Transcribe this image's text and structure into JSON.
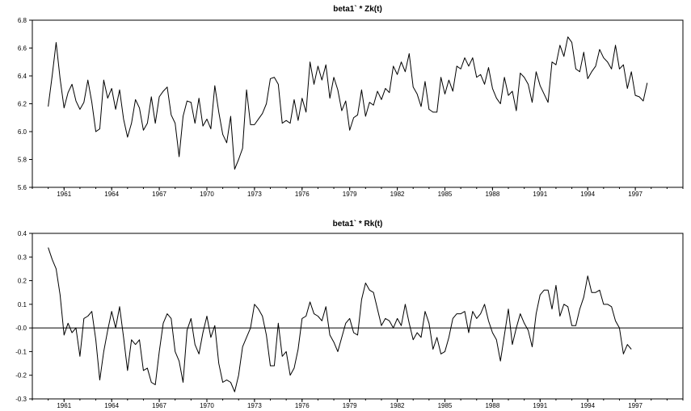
{
  "chart_data": [
    {
      "type": "line",
      "title": "beta1` * Zk(t)",
      "xlabel": "",
      "ylabel": "",
      "xlim": [
        1959.0,
        2000.0
      ],
      "ylim": [
        5.6,
        6.8
      ],
      "yticks": [
        5.6,
        5.8,
        6.0,
        6.2,
        6.4,
        6.6,
        6.8
      ],
      "ytick_labels": [
        "5.6",
        "5.8",
        "6.0",
        "6.2",
        "6.4",
        "6.6",
        "6.8"
      ],
      "xticks": [
        "1961",
        "1964",
        "1967",
        "1970",
        "1973",
        "1976",
        "1979",
        "1982",
        "1985",
        "1988",
        "1991",
        "1994",
        "1997"
      ],
      "zero_line": false,
      "series": [
        {
          "color": "#000000",
          "x_start": 1960.0,
          "x_step": 0.25,
          "values": [
            6.18,
            6.4,
            6.64,
            6.38,
            6.17,
            6.28,
            6.34,
            6.22,
            6.16,
            6.21,
            6.37,
            6.21,
            6.0,
            6.02,
            6.37,
            6.24,
            6.31,
            6.16,
            6.3,
            6.09,
            5.96,
            6.06,
            6.23,
            6.17,
            6.01,
            6.06,
            6.25,
            6.06,
            6.25,
            6.29,
            6.32,
            6.12,
            6.06,
            5.82,
            6.11,
            6.22,
            6.21,
            6.06,
            6.24,
            6.04,
            6.09,
            6.02,
            6.33,
            6.14,
            5.98,
            5.92,
            6.11,
            5.73,
            5.8,
            5.88,
            6.3,
            6.05,
            6.05,
            6.09,
            6.13,
            6.2,
            6.38,
            6.39,
            6.34,
            6.06,
            6.08,
            6.06,
            6.23,
            6.08,
            6.24,
            6.14,
            6.5,
            6.34,
            6.47,
            6.37,
            6.48,
            6.24,
            6.39,
            6.3,
            6.15,
            6.22,
            6.01,
            6.1,
            6.12,
            6.3,
            6.11,
            6.21,
            6.19,
            6.29,
            6.23,
            6.31,
            6.28,
            6.47,
            6.41,
            6.5,
            6.43,
            6.56,
            6.32,
            6.27,
            6.18,
            6.36,
            6.16,
            6.14,
            6.14,
            6.39,
            6.27,
            6.37,
            6.29,
            6.47,
            6.45,
            6.53,
            6.47,
            6.53,
            6.39,
            6.41,
            6.34,
            6.46,
            6.31,
            6.24,
            6.2,
            6.39,
            6.26,
            6.29,
            6.15,
            6.42,
            6.39,
            6.34,
            6.21,
            6.43,
            6.33,
            6.27,
            6.21,
            6.5,
            6.48,
            6.62,
            6.54,
            6.68,
            6.64,
            6.45,
            6.43,
            6.57,
            6.38,
            6.43,
            6.47,
            6.59,
            6.53,
            6.5,
            6.45,
            6.62,
            6.45,
            6.48,
            6.31,
            6.43,
            6.26,
            6.25,
            6.22,
            6.35
          ]
        }
      ]
    },
    {
      "type": "line",
      "title": "beta1` * Rk(t)",
      "xlabel": "",
      "ylabel": "",
      "xlim": [
        1959.0,
        2000.0
      ],
      "ylim": [
        -0.3,
        0.4
      ],
      "yticks": [
        -0.3,
        -0.2,
        -0.1,
        0.0,
        0.1,
        0.2,
        0.3,
        0.4
      ],
      "ytick_labels": [
        "-0.3",
        "-0.2",
        "-0.1",
        "-0.0",
        "0.1",
        "0.2",
        "0.3",
        "0.4"
      ],
      "xticks": [
        "1961",
        "1964",
        "1967",
        "1970",
        "1973",
        "1976",
        "1979",
        "1982",
        "1985",
        "1988",
        "1991",
        "1994",
        "1997"
      ],
      "zero_line": true,
      "series": [
        {
          "color": "#000000",
          "x_start": 1960.0,
          "x_step": 0.25,
          "values": [
            0.34,
            0.29,
            0.25,
            0.14,
            -0.03,
            0.02,
            -0.02,
            0.0,
            -0.12,
            0.04,
            0.05,
            0.07,
            -0.05,
            -0.22,
            -0.1,
            -0.01,
            0.07,
            0.0,
            0.09,
            -0.04,
            -0.18,
            -0.05,
            -0.07,
            -0.05,
            -0.18,
            -0.17,
            -0.23,
            -0.24,
            -0.1,
            0.02,
            0.06,
            0.04,
            -0.1,
            -0.14,
            -0.23,
            -0.01,
            0.04,
            -0.07,
            -0.11,
            -0.02,
            0.05,
            -0.04,
            0.01,
            -0.15,
            -0.23,
            -0.22,
            -0.23,
            -0.27,
            -0.2,
            -0.08,
            -0.04,
            0.0,
            0.1,
            0.08,
            0.05,
            -0.03,
            -0.16,
            -0.16,
            0.02,
            -0.12,
            -0.1,
            -0.2,
            -0.17,
            -0.09,
            0.04,
            0.05,
            0.11,
            0.06,
            0.05,
            0.03,
            0.09,
            -0.03,
            -0.06,
            -0.1,
            -0.04,
            0.02,
            0.04,
            -0.02,
            -0.03,
            0.12,
            0.19,
            0.16,
            0.15,
            0.08,
            0.01,
            0.04,
            0.03,
            0.0,
            0.04,
            0.01,
            0.1,
            0.02,
            -0.05,
            -0.02,
            -0.04,
            0.07,
            0.02,
            -0.09,
            -0.04,
            -0.11,
            -0.1,
            -0.04,
            0.04,
            0.06,
            0.06,
            0.07,
            -0.02,
            0.07,
            0.04,
            0.06,
            0.1,
            0.03,
            -0.02,
            -0.05,
            -0.14,
            -0.03,
            0.08,
            -0.07,
            0.0,
            0.06,
            0.02,
            -0.01,
            -0.08,
            0.06,
            0.14,
            0.16,
            0.16,
            0.08,
            0.18,
            0.05,
            0.1,
            0.09,
            0.01,
            0.01,
            0.08,
            0.13,
            0.22,
            0.15,
            0.15,
            0.16,
            0.1,
            0.1,
            0.09,
            0.03,
            0.0,
            -0.11,
            -0.07,
            -0.09
          ]
        }
      ]
    }
  ]
}
